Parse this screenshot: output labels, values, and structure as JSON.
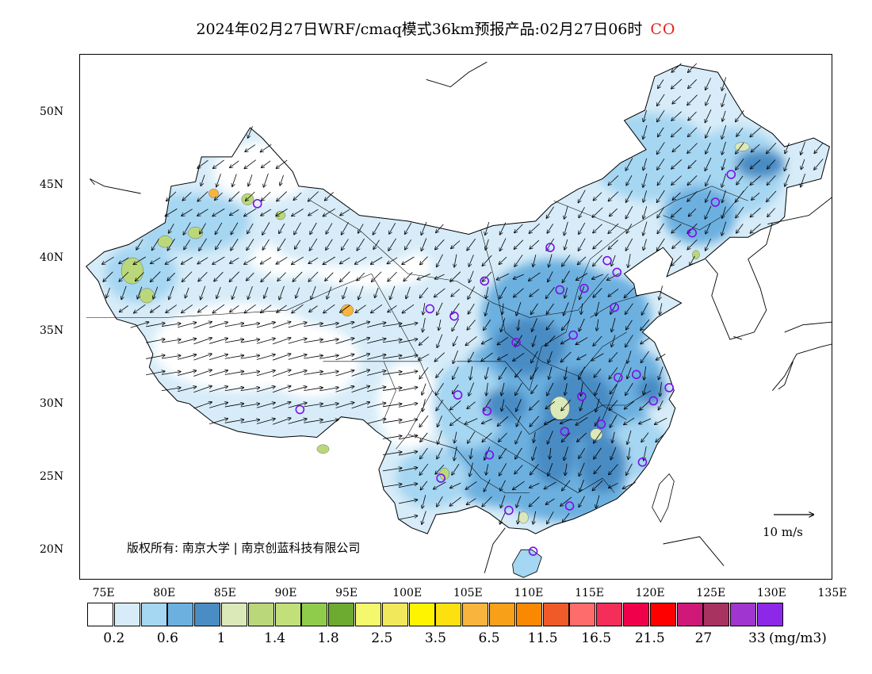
{
  "title": {
    "main": "2024年02月27日WRF/cmaq模式36km预报产品:02月27日06时",
    "species": "CO",
    "species_color": "#e8201c"
  },
  "map": {
    "lon_range": [
      73,
      135
    ],
    "lat_range": [
      18,
      54
    ],
    "lat_ticks": [
      {
        "value": 50,
        "label": "50N"
      },
      {
        "value": 45,
        "label": "45N"
      },
      {
        "value": 40,
        "label": "40N"
      },
      {
        "value": 35,
        "label": "35N"
      },
      {
        "value": 30,
        "label": "30N"
      },
      {
        "value": 25,
        "label": "25N"
      },
      {
        "value": 20,
        "label": "20N"
      }
    ],
    "lon_ticks": [
      {
        "value": 75,
        "label": "75E"
      },
      {
        "value": 80,
        "label": "80E"
      },
      {
        "value": 85,
        "label": "85E"
      },
      {
        "value": 90,
        "label": "90E"
      },
      {
        "value": 95,
        "label": "95E"
      },
      {
        "value": 100,
        "label": "100E"
      },
      {
        "value": 105,
        "label": "105E"
      },
      {
        "value": 110,
        "label": "110E"
      },
      {
        "value": 115,
        "label": "115E"
      },
      {
        "value": 120,
        "label": "120E"
      },
      {
        "value": 125,
        "label": "125E"
      },
      {
        "value": 130,
        "label": "130E"
      },
      {
        "value": 135,
        "label": "135E"
      }
    ],
    "copyright": "版权所有: 南京大学 | 南京创蓝科技有限公司",
    "wind_reference": "10 m/s",
    "city_marker_color": "#7b10e8",
    "cities": [
      {
        "lon": 87.6,
        "lat": 43.8
      },
      {
        "lon": 91.1,
        "lat": 29.7
      },
      {
        "lon": 101.8,
        "lat": 36.6
      },
      {
        "lon": 103.8,
        "lat": 36.1
      },
      {
        "lon": 106.3,
        "lat": 38.5
      },
      {
        "lon": 111.7,
        "lat": 40.8
      },
      {
        "lon": 116.4,
        "lat": 39.9
      },
      {
        "lon": 117.2,
        "lat": 39.1
      },
      {
        "lon": 114.5,
        "lat": 38.0
      },
      {
        "lon": 112.5,
        "lat": 37.9
      },
      {
        "lon": 117.0,
        "lat": 36.7
      },
      {
        "lon": 113.6,
        "lat": 34.8
      },
      {
        "lon": 108.9,
        "lat": 34.3
      },
      {
        "lon": 104.1,
        "lat": 30.7
      },
      {
        "lon": 106.5,
        "lat": 29.6
      },
      {
        "lon": 114.3,
        "lat": 30.6
      },
      {
        "lon": 117.3,
        "lat": 31.9
      },
      {
        "lon": 118.8,
        "lat": 32.1
      },
      {
        "lon": 121.5,
        "lat": 31.2
      },
      {
        "lon": 120.2,
        "lat": 30.3
      },
      {
        "lon": 112.9,
        "lat": 28.2
      },
      {
        "lon": 115.9,
        "lat": 28.7
      },
      {
        "lon": 119.3,
        "lat": 26.1
      },
      {
        "lon": 106.7,
        "lat": 26.6
      },
      {
        "lon": 102.7,
        "lat": 25.0
      },
      {
        "lon": 108.3,
        "lat": 22.8
      },
      {
        "lon": 113.3,
        "lat": 23.1
      },
      {
        "lon": 110.3,
        "lat": 20.0
      },
      {
        "lon": 123.4,
        "lat": 41.8
      },
      {
        "lon": 125.3,
        "lat": 43.9
      },
      {
        "lon": 126.6,
        "lat": 45.8
      }
    ]
  },
  "legend": {
    "colors": [
      "#ffffff",
      "#d7ecf8",
      "#a5d6f2",
      "#6cb0e0",
      "#4a8cc4",
      "#dbe8b8",
      "#bad87a",
      "#c2e07a",
      "#90cc4c",
      "#6caa30",
      "#f4f86c",
      "#f2e85c",
      "#fff400",
      "#fce010",
      "#f8b43c",
      "#f8a018",
      "#fa8800",
      "#f05a28",
      "#ff6c6c",
      "#f42e58",
      "#f0004a",
      "#ff0000",
      "#d01878",
      "#a83260",
      "#a035d0",
      "#8e28e8"
    ],
    "labels": [
      {
        "index": 1,
        "text": "0.2"
      },
      {
        "index": 3,
        "text": "0.6"
      },
      {
        "index": 5,
        "text": "1"
      },
      {
        "index": 7,
        "text": "1.4"
      },
      {
        "index": 9,
        "text": "1.8"
      },
      {
        "index": 11,
        "text": "2.5"
      },
      {
        "index": 13,
        "text": "3.5"
      },
      {
        "index": 15,
        "text": "6.5"
      },
      {
        "index": 17,
        "text": "11.5"
      },
      {
        "index": 19,
        "text": "16.5"
      },
      {
        "index": 21,
        "text": "21.5"
      },
      {
        "index": 23,
        "text": "27"
      },
      {
        "index": 25,
        "text": "33"
      }
    ],
    "unit": "(mg/m3)"
  }
}
